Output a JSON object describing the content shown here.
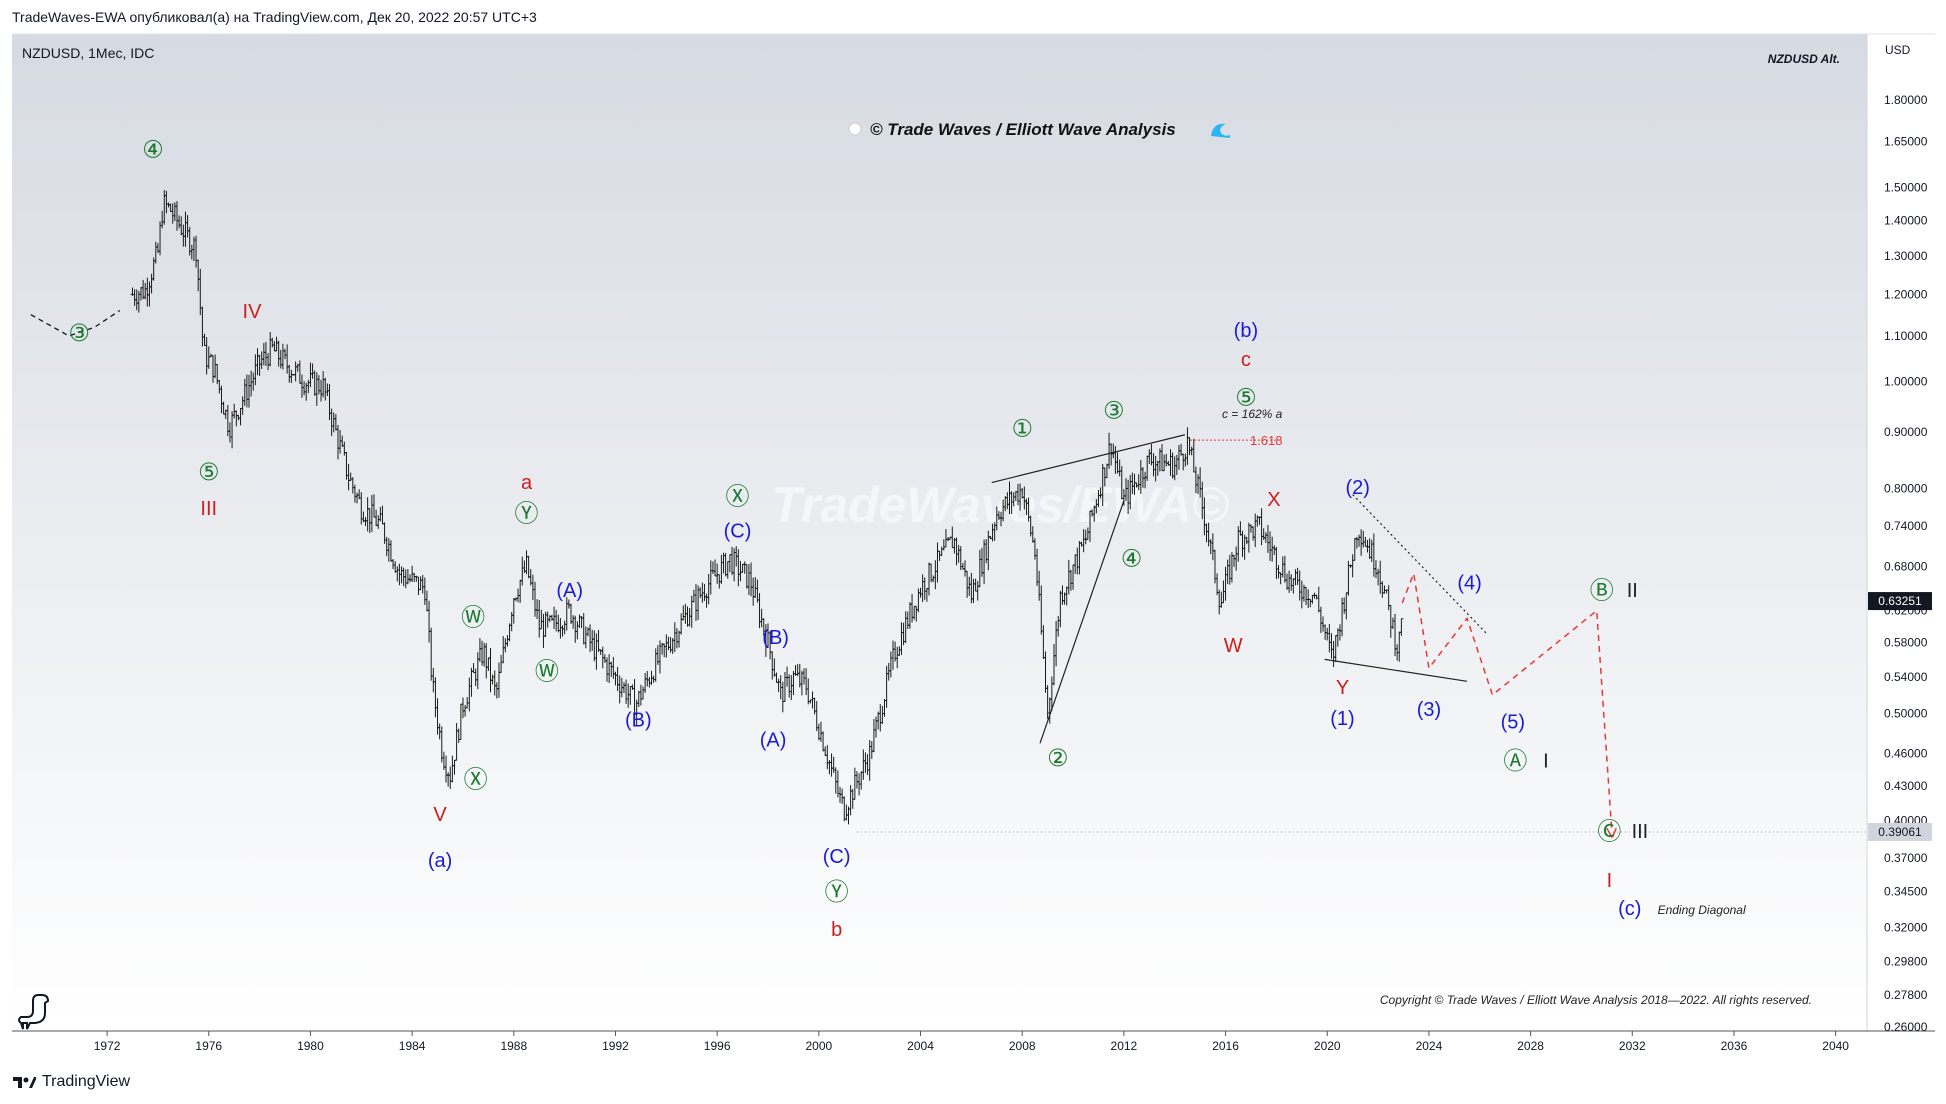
{
  "header": {
    "published_line": "TradeWaves-EWA опубликовал(а) на TradingView.com, Дек 20, 2022 20:57 UTC+3",
    "symbol_info": "NZDUSD, 1Мес, IDC"
  },
  "annotations": {
    "top_right_label": "NZDUSD Alt.",
    "brand_title": "© Trade Waves / Elliott Wave Analysis",
    "watermark": "TradeWaves/EWA©",
    "fib_note": "c = 162% a",
    "fib_level": "1.618",
    "ending_diagonal": "Ending Diagonal",
    "copyright": "Copyright © Trade Waves / Elliott Wave Analysis 2018—2022. All rights reserved."
  },
  "price_axis": {
    "currency": "USD",
    "last_price": "0.63251",
    "low_marker": "0.39061",
    "ticks": [
      "1.80000",
      "1.65000",
      "1.50000",
      "1.40000",
      "1.30000",
      "1.20000",
      "1.10000",
      "1.00000",
      "0.90000",
      "0.80000",
      "0.74000",
      "0.68000",
      "0.62000",
      "0.58000",
      "0.54000",
      "0.50000",
      "0.46000",
      "0.43000",
      "0.40000",
      "0.37000",
      "0.34500",
      "0.32000",
      "0.29800",
      "0.27800",
      "0.26000"
    ]
  },
  "colors": {
    "green": "#1b7a2f",
    "red": "#d01c1c",
    "blue": "#1a1ad6",
    "dark": "#222222",
    "last_price_bg": "#131722"
  },
  "footer": {
    "brand": "TradingView",
    "logo_icon": "tradingview-logo-icon"
  },
  "chart_data": {
    "type": "ohlc-monthly",
    "symbol": "NZDUSD",
    "timeframe": "1Мес",
    "y_scale": "log",
    "ylim": [
      0.26,
      1.88
    ],
    "xlim": [
      1969.0,
      2041.5
    ],
    "x_ticks": [
      "1972",
      "1976",
      "1980",
      "1984",
      "1988",
      "1992",
      "1996",
      "2000",
      "2004",
      "2008",
      "2012",
      "2016",
      "2020",
      "2024",
      "2028",
      "2032",
      "2036",
      "2040"
    ],
    "price_path": [
      [
        1973.0,
        1.2
      ],
      [
        1973.5,
        1.21
      ],
      [
        1974.0,
        1.31
      ],
      [
        1974.2,
        1.45
      ],
      [
        1974.5,
        1.43
      ],
      [
        1975.0,
        1.37
      ],
      [
        1975.5,
        1.32
      ],
      [
        1975.8,
        1.06
      ],
      [
        1976.2,
        1.03
      ],
      [
        1976.8,
        0.91
      ],
      [
        1977.3,
        0.96
      ],
      [
        1978.0,
        1.04
      ],
      [
        1978.5,
        1.07
      ],
      [
        1979.0,
        1.04
      ],
      [
        1979.8,
        1.0
      ],
      [
        1980.5,
        0.99
      ],
      [
        1981.0,
        0.9
      ],
      [
        1981.5,
        0.82
      ],
      [
        1982.0,
        0.77
      ],
      [
        1982.8,
        0.74
      ],
      [
        1983.5,
        0.67
      ],
      [
        1984.5,
        0.65
      ],
      [
        1984.8,
        0.53
      ],
      [
        1985.2,
        0.46
      ],
      [
        1985.5,
        0.44
      ],
      [
        1986.0,
        0.51
      ],
      [
        1986.8,
        0.57
      ],
      [
        1987.3,
        0.52
      ],
      [
        1988.0,
        0.64
      ],
      [
        1988.5,
        0.68
      ],
      [
        1989.0,
        0.6
      ],
      [
        1989.5,
        0.6
      ],
      [
        1990.2,
        0.62
      ],
      [
        1991.0,
        0.58
      ],
      [
        1992.0,
        0.54
      ],
      [
        1992.8,
        0.51
      ],
      [
        1993.5,
        0.55
      ],
      [
        1994.5,
        0.6
      ],
      [
        1995.5,
        0.65
      ],
      [
        1996.5,
        0.69
      ],
      [
        1997.3,
        0.66
      ],
      [
        1998.0,
        0.58
      ],
      [
        1998.5,
        0.52
      ],
      [
        1999.0,
        0.54
      ],
      [
        1999.5,
        0.53
      ],
      [
        2000.2,
        0.47
      ],
      [
        2000.8,
        0.42
      ],
      [
        2001.0,
        0.41
      ],
      [
        2002.0,
        0.46
      ],
      [
        2003.0,
        0.57
      ],
      [
        2004.0,
        0.65
      ],
      [
        2005.3,
        0.72
      ],
      [
        2006.0,
        0.64
      ],
      [
        2007.0,
        0.76
      ],
      [
        2008.0,
        0.8
      ],
      [
        2008.5,
        0.7
      ],
      [
        2009.0,
        0.5
      ],
      [
        2009.5,
        0.64
      ],
      [
        2010.5,
        0.72
      ],
      [
        2011.5,
        0.88
      ],
      [
        2012.0,
        0.78
      ],
      [
        2013.0,
        0.85
      ],
      [
        2014.0,
        0.84
      ],
      [
        2014.5,
        0.88
      ],
      [
        2015.2,
        0.75
      ],
      [
        2015.8,
        0.63
      ],
      [
        2016.5,
        0.72
      ],
      [
        2017.3,
        0.74
      ],
      [
        2018.5,
        0.66
      ],
      [
        2019.5,
        0.64
      ],
      [
        2020.2,
        0.56
      ],
      [
        2020.8,
        0.66
      ],
      [
        2021.2,
        0.74
      ],
      [
        2022.0,
        0.68
      ],
      [
        2022.8,
        0.57
      ],
      [
        2022.95,
        0.63
      ]
    ],
    "projection": [
      [
        2022.95,
        0.63
      ],
      [
        2023.4,
        0.67
      ],
      [
        2024.0,
        0.55
      ],
      [
        2025.5,
        0.61
      ],
      [
        2026.5,
        0.52
      ],
      [
        2030.6,
        0.62
      ],
      [
        2031.2,
        0.39
      ]
    ],
    "early_dashed": [
      [
        1969.0,
        1.15
      ],
      [
        1970.5,
        1.1
      ],
      [
        1971.5,
        1.12
      ],
      [
        1972.5,
        1.16
      ]
    ],
    "trendlines": [
      {
        "kind": "solid",
        "points": [
          [
            2006.8,
            0.81
          ],
          [
            2014.4,
            0.895
          ]
        ]
      },
      {
        "kind": "solid",
        "points": [
          [
            2008.7,
            0.47
          ],
          [
            2012.0,
            0.78
          ]
        ]
      },
      {
        "kind": "solid",
        "points": [
          [
            2019.9,
            0.56
          ],
          [
            2025.5,
            0.535
          ]
        ]
      },
      {
        "kind": "dotted",
        "points": [
          [
            2021.0,
            0.79
          ],
          [
            2026.3,
            0.59
          ]
        ]
      }
    ],
    "fib_line": {
      "x1": 2014.6,
      "x2": 2018.0,
      "y": 0.885
    },
    "low_line": {
      "x1": 2001.5,
      "y": 0.39061
    },
    "wave_labels": [
      {
        "text": "③",
        "x": 1970.9,
        "y": 1.105,
        "color": "green"
      },
      {
        "text": "④",
        "x": 1973.8,
        "y": 1.62,
        "color": "green"
      },
      {
        "text": "IV",
        "x": 1977.7,
        "y": 1.155,
        "color": "red"
      },
      {
        "text": "⑤",
        "x": 1976.0,
        "y": 0.826,
        "color": "green"
      },
      {
        "text": "III",
        "x": 1976.0,
        "y": 0.765,
        "color": "red"
      },
      {
        "text": "V",
        "x": 1985.1,
        "y": 0.404,
        "color": "red"
      },
      {
        "text": "(a)",
        "x": 1985.1,
        "y": 0.367,
        "color": "blue"
      },
      {
        "text": "Ⓦ",
        "x": 1986.4,
        "y": 0.61,
        "color": "green"
      },
      {
        "text": "Ⓧ",
        "x": 1986.5,
        "y": 0.435,
        "color": "green"
      },
      {
        "text": "a",
        "x": 1988.5,
        "y": 0.808,
        "color": "red"
      },
      {
        "text": "Ⓨ",
        "x": 1988.5,
        "y": 0.758,
        "color": "green"
      },
      {
        "text": "Ⓦ",
        "x": 1989.3,
        "y": 0.545,
        "color": "green"
      },
      {
        "text": "(A)",
        "x": 1990.2,
        "y": 0.645,
        "color": "blue"
      },
      {
        "text": "(B)",
        "x": 1992.9,
        "y": 0.492,
        "color": "blue"
      },
      {
        "text": "Ⓧ",
        "x": 1996.8,
        "y": 0.785,
        "color": "green"
      },
      {
        "text": "(C)",
        "x": 1996.8,
        "y": 0.73,
        "color": "blue"
      },
      {
        "text": "(B)",
        "x": 1998.3,
        "y": 0.585,
        "color": "blue"
      },
      {
        "text": "(A)",
        "x": 1998.2,
        "y": 0.472,
        "color": "blue"
      },
      {
        "text": "(C)",
        "x": 2000.7,
        "y": 0.37,
        "color": "blue"
      },
      {
        "text": "Ⓨ",
        "x": 2000.7,
        "y": 0.344,
        "color": "green"
      },
      {
        "text": "b",
        "x": 2000.7,
        "y": 0.318,
        "color": "red"
      },
      {
        "text": "①",
        "x": 2008.0,
        "y": 0.905,
        "color": "green"
      },
      {
        "text": "②",
        "x": 2009.4,
        "y": 0.455,
        "color": "green"
      },
      {
        "text": "③",
        "x": 2011.6,
        "y": 0.94,
        "color": "green"
      },
      {
        "text": "④",
        "x": 2012.3,
        "y": 0.69,
        "color": "green"
      },
      {
        "text": "(b)",
        "x": 2016.8,
        "y": 1.11,
        "color": "blue"
      },
      {
        "text": "c",
        "x": 2016.8,
        "y": 1.045,
        "color": "red"
      },
      {
        "text": "⑤",
        "x": 2016.8,
        "y": 0.965,
        "color": "green"
      },
      {
        "text": "W",
        "x": 2016.3,
        "y": 0.575,
        "color": "red"
      },
      {
        "text": "X",
        "x": 2017.9,
        "y": 0.78,
        "color": "red"
      },
      {
        "text": "(2)",
        "x": 2021.2,
        "y": 0.8,
        "color": "blue"
      },
      {
        "text": "Y",
        "x": 2020.6,
        "y": 0.527,
        "color": "red"
      },
      {
        "text": "(1)",
        "x": 2020.6,
        "y": 0.494,
        "color": "blue"
      },
      {
        "text": "(3)",
        "x": 2024.0,
        "y": 0.503,
        "color": "blue"
      },
      {
        "text": "(4)",
        "x": 2025.6,
        "y": 0.655,
        "color": "blue"
      },
      {
        "text": "(5)",
        "x": 2027.3,
        "y": 0.49,
        "color": "blue"
      },
      {
        "text": "Ⓐ",
        "x": 2027.4,
        "y": 0.452,
        "color": "green"
      },
      {
        "text": "I",
        "x": 2028.6,
        "y": 0.452,
        "color": "dark"
      },
      {
        "text": "Ⓑ",
        "x": 2030.8,
        "y": 0.645,
        "color": "green"
      },
      {
        "text": "II",
        "x": 2032.0,
        "y": 0.645,
        "color": "dark"
      },
      {
        "text": "Ⓒ",
        "x": 2031.1,
        "y": 0.39,
        "color": "green"
      },
      {
        "text": "III",
        "x": 2032.3,
        "y": 0.39,
        "color": "dark"
      },
      {
        "text": "I",
        "x": 2031.1,
        "y": 0.352,
        "color": "red"
      },
      {
        "text": "(c)",
        "x": 2031.9,
        "y": 0.332,
        "color": "blue"
      }
    ]
  }
}
